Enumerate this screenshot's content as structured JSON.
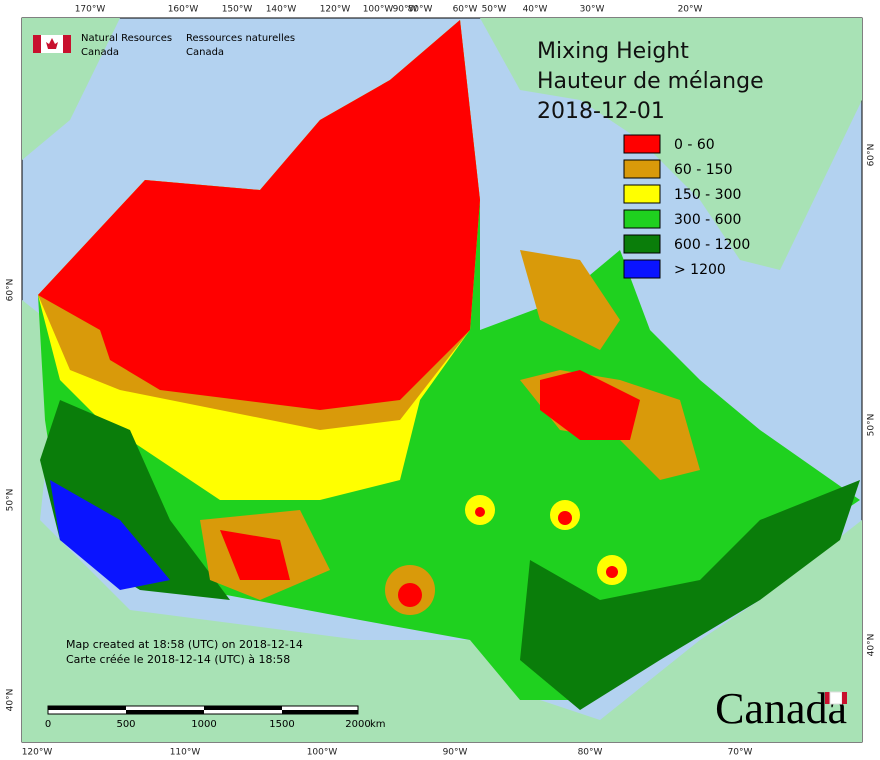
{
  "agency": {
    "en": [
      "Natural Resources",
      "Canada"
    ],
    "fr": [
      "Ressources naturelles",
      "Canada"
    ]
  },
  "title": [
    "Mixing Height",
    "Hauteur de mélange",
    "2018-12-01"
  ],
  "legend": [
    {
      "label": "0 - 60",
      "color": "#ff0000"
    },
    {
      "label": "60 - 150",
      "color": "#d99a0a"
    },
    {
      "label": "150 - 300",
      "color": "#ffff00"
    },
    {
      "label": "300 - 600",
      "color": "#1fd11f"
    },
    {
      "label": "600 - 1200",
      "color": "#0a7d0a"
    },
    {
      "label": "> 1200",
      "color": "#0a14ff"
    }
  ],
  "top_labels": [
    "170°W",
    "160°W",
    "150°W",
    "140°W",
    "120°W",
    "100°W",
    "90°W",
    "80°W",
    "60°W",
    "50°W",
    "40°W",
    "30°W",
    "20°W"
  ],
  "bottom_labels": [
    "120°W",
    "110°W",
    "100°W",
    "90°W",
    "80°W",
    "70°W"
  ],
  "left_labels": [
    "60°N",
    "50°N",
    "40°N"
  ],
  "right_labels": [
    "60°N",
    "50°N",
    "40°N"
  ],
  "notes": [
    "Map created at 18:58 (UTC) on 2018-12-14",
    "Carte créée le 2018-12-14 (UTC) à 18:58"
  ],
  "scale_bar": {
    "labels": [
      "0",
      "500",
      "1000",
      "1500",
      "2000"
    ],
    "unit": "km"
  },
  "wordmark": "Canada"
}
